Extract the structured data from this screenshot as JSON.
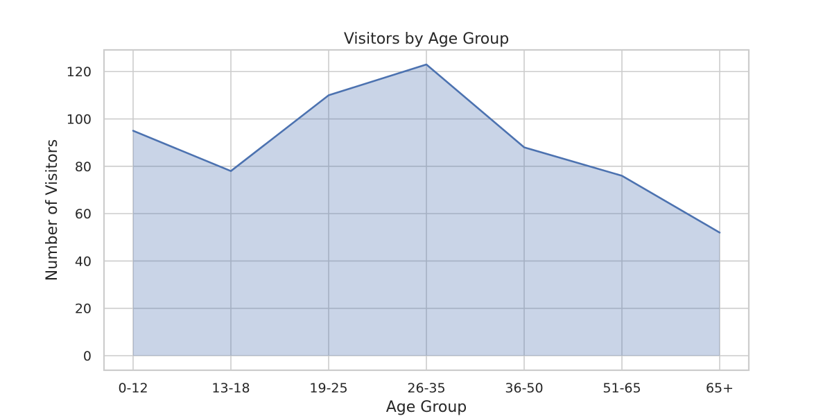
{
  "chart_data": {
    "type": "area",
    "title": "Visitors by Age Group",
    "xlabel": "Age Group",
    "ylabel": "Number of Visitors",
    "categories": [
      "0-12",
      "13-18",
      "19-25",
      "26-35",
      "36-50",
      "51-65",
      "65+"
    ],
    "series": [
      {
        "values": [
          95,
          78,
          110,
          123,
          88,
          76,
          52
        ]
      }
    ],
    "ylim": [
      -6.15,
      129.15
    ],
    "yticks": [
      0,
      20,
      40,
      60,
      80,
      100,
      120
    ],
    "grid": true,
    "colors": {
      "series": "#4c72b0",
      "grid": "#cccccc",
      "text": "#262626"
    }
  }
}
